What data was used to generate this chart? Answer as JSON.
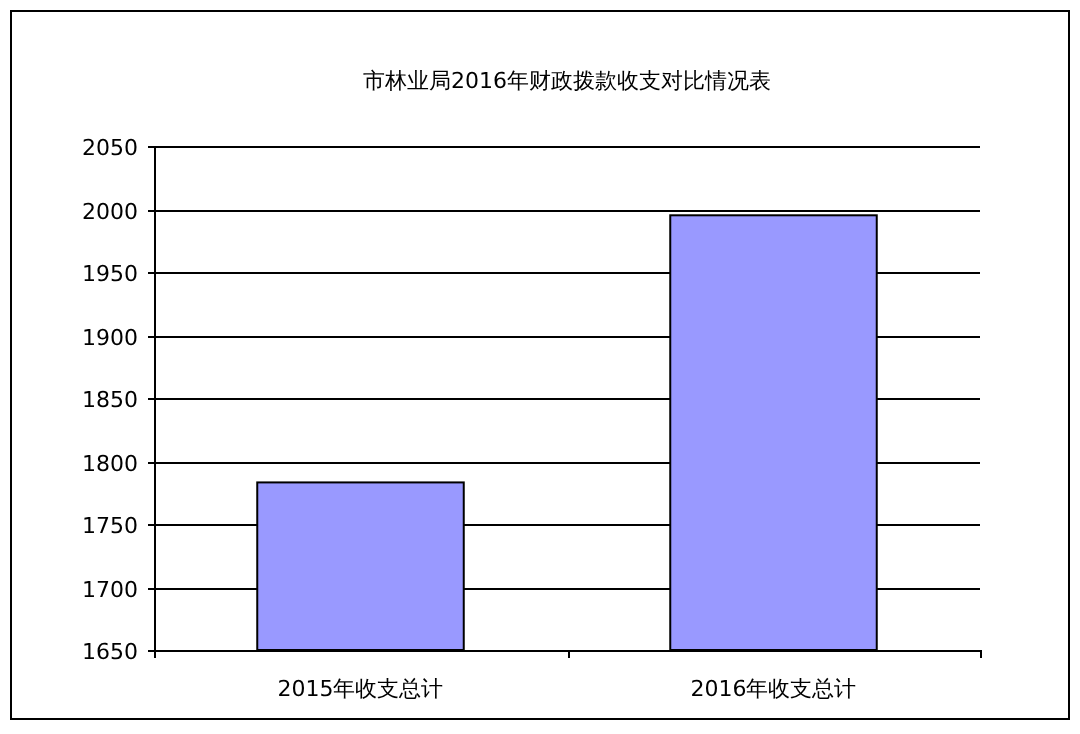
{
  "chart_data": {
    "type": "bar",
    "title": "市林业局2016年财政拨款收支对比情况表",
    "categories": [
      "2015年收支总计",
      "2016年收支总计"
    ],
    "values": [
      1783,
      1995
    ],
    "color": "#9999ff",
    "ylim": [
      1650,
      2050
    ],
    "yticks": [
      1650,
      1700,
      1750,
      1800,
      1850,
      1900,
      1950,
      2000,
      2050
    ],
    "grid": "y"
  }
}
